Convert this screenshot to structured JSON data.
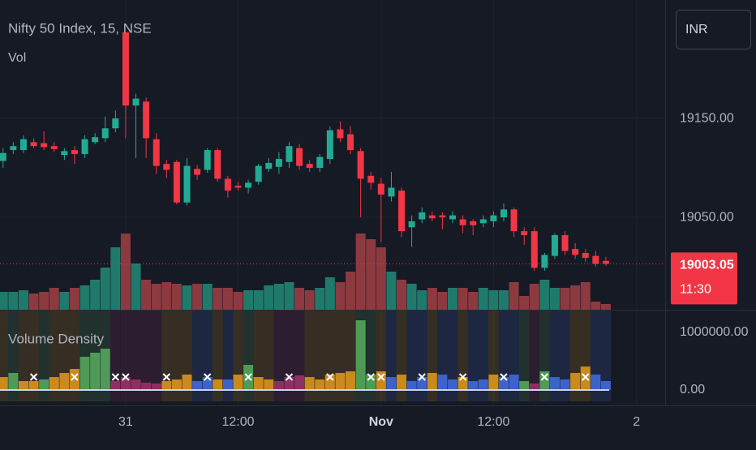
{
  "chart_data": [
    {
      "type": "candlestick",
      "title": "Nifty 50 Index, 15, NSE",
      "currency": "INR",
      "x": [
        -12,
        -11,
        -10,
        -9,
        -8,
        -7,
        -6,
        -5,
        -4,
        -3,
        -2,
        -1,
        0,
        1,
        2,
        3,
        4,
        5,
        6,
        7,
        8,
        9,
        10,
        11,
        12,
        13,
        14,
        15,
        16,
        17,
        18,
        19,
        20,
        21,
        22,
        23,
        24,
        25,
        26,
        27,
        28,
        29,
        30,
        31,
        32,
        33,
        34,
        35,
        36,
        37,
        38,
        39,
        40,
        41,
        42,
        43,
        44,
        45,
        46,
        47
      ],
      "open": [
        19107,
        19118,
        19118,
        19126,
        19125,
        19122,
        19113,
        19118,
        19114,
        19126,
        19130,
        19140,
        19237,
        19163,
        19167,
        19129,
        19104,
        19106,
        19065,
        19099,
        19098,
        19118,
        19089,
        19082,
        19080,
        19086,
        19099,
        19101,
        19106,
        19120,
        19104,
        19100,
        19109,
        19139,
        19134,
        19117,
        19092,
        19084,
        19071,
        19077,
        19040,
        19048,
        19052,
        19052,
        19048,
        19048,
        19046,
        19044,
        19046,
        19050,
        19058,
        19036,
        19036,
        18999,
        19011,
        19032,
        19018,
        19014,
        19011,
        19006
      ],
      "high": [
        19120,
        19126,
        19133,
        19130,
        19137,
        19126,
        19120,
        19122,
        19133,
        19135,
        19152,
        19158,
        19237,
        19175,
        19171,
        19135,
        19108,
        19108,
        19110,
        19103,
        19120,
        19120,
        19092,
        19086,
        19088,
        19104,
        19110,
        19116,
        19126,
        19124,
        19108,
        19114,
        19142,
        19147,
        19142,
        19120,
        19096,
        19090,
        19096,
        19080,
        19052,
        19060,
        19056,
        19055,
        19056,
        19052,
        19048,
        19052,
        19056,
        19064,
        19060,
        19040,
        19040,
        19014,
        19034,
        19036,
        19024,
        19018,
        19016,
        19010
      ],
      "low": [
        19100,
        19114,
        19115,
        19120,
        19118,
        19116,
        19108,
        19104,
        19110,
        19124,
        19126,
        19136,
        19130,
        19110,
        19110,
        19094,
        19090,
        19063,
        19062,
        19088,
        19095,
        19086,
        19070,
        19077,
        19074,
        19083,
        19096,
        19094,
        19100,
        19098,
        19096,
        19096,
        19104,
        19126,
        19114,
        19050,
        19078,
        19025,
        19066,
        19030,
        19020,
        19044,
        19046,
        19038,
        19044,
        19034,
        19032,
        19040,
        19040,
        19046,
        19030,
        19022,
        18996,
        18996,
        19008,
        19012,
        19008,
        19005,
        19000,
        19001
      ],
      "close": [
        19115,
        19122,
        19129,
        19122,
        19121,
        19119,
        19117,
        19114,
        19129,
        19131,
        19140,
        19150,
        19163,
        19170,
        19130,
        19102,
        19098,
        19065,
        19102,
        19093,
        19118,
        19089,
        19077,
        19080,
        19085,
        19102,
        19105,
        19109,
        19122,
        19102,
        19100,
        19111,
        19138,
        19130,
        19118,
        19089,
        19085,
        19073,
        19080,
        19036,
        19046,
        19055,
        19049,
        19050,
        19052,
        19042,
        19042,
        19048,
        19052,
        19058,
        19036,
        19032,
        18999,
        19012,
        19032,
        19016,
        19012,
        19009,
        19003,
        19003.05
      ],
      "up_color": "#22ab94",
      "down_color": "#f23645",
      "xlim": [
        -12.3,
        52.8
      ],
      "xticks": [
        {
          "value": 0,
          "label": "31"
        },
        {
          "value": 11,
          "label": "12:00"
        },
        {
          "value": 25,
          "label": "Nov"
        },
        {
          "value": 36,
          "label": "12:00"
        },
        {
          "value": 50,
          "label": "2"
        }
      ],
      "ylim": [
        18956.6,
        19269.7
      ],
      "yticks": [
        {
          "value": 19050,
          "label": "19050.00"
        },
        {
          "value": 19150,
          "label": "19150.00"
        }
      ],
      "grid": true,
      "last_price": 19003.05,
      "countdown": "11:30",
      "volume": {
        "name": "Vol",
        "ylim": [
          0,
          408000
        ],
        "up_color": "#1f7a6c",
        "down_color": "#8c3a40",
        "values": [
          88000,
          88000,
          96000,
          80000,
          88000,
          108000,
          88000,
          108000,
          120000,
          148000,
          208000,
          308000,
          376000,
          228000,
          148000,
          128000,
          136000,
          128000,
          120000,
          128000,
          128000,
          108000,
          108000,
          88000,
          96000,
          96000,
          120000,
          128000,
          136000,
          108000,
          96000,
          108000,
          160000,
          136000,
          188000,
          376000,
          348000,
          308000,
          188000,
          148000,
          128000,
          96000,
          108000,
          88000,
          108000,
          108000,
          88000,
          108000,
          96000,
          96000,
          136000,
          68000,
          128000,
          148000,
          108000,
          108000,
          120000,
          136000,
          40000,
          28000
        ]
      }
    },
    {
      "type": "bar",
      "title": "Volume Density",
      "x": [
        -12,
        -11,
        -10,
        -9,
        -8,
        -7,
        -6,
        -5,
        -4,
        -3,
        -2,
        -1,
        0,
        1,
        2,
        3,
        4,
        5,
        6,
        7,
        8,
        9,
        10,
        11,
        12,
        13,
        14,
        15,
        16,
        17,
        18,
        19,
        20,
        21,
        22,
        23,
        24,
        25,
        26,
        27,
        28,
        29,
        30,
        31,
        32,
        33,
        34,
        35,
        36,
        37,
        38,
        39,
        40,
        41,
        42,
        43,
        44,
        45,
        46,
        47
      ],
      "values": [
        225000,
        296000,
        155000,
        155000,
        183000,
        225000,
        296000,
        366000,
        577000,
        648000,
        718000,
        155000,
        225000,
        183000,
        127000,
        113000,
        155000,
        183000,
        268000,
        155000,
        225000,
        183000,
        183000,
        268000,
        437000,
        225000,
        183000,
        155000,
        225000,
        254000,
        225000,
        183000,
        268000,
        296000,
        324000,
        1211000,
        268000,
        324000,
        225000,
        268000,
        155000,
        225000,
        296000,
        268000,
        183000,
        225000,
        155000,
        183000,
        268000,
        225000,
        268000,
        155000,
        113000,
        324000,
        225000,
        183000,
        296000,
        408000,
        268000,
        155000
      ],
      "colors": [
        "#c98a1e",
        "#4f9a57",
        "#c98a1e",
        "#c98a1e",
        "#4f9a57",
        "#c98a1e",
        "#c98a1e",
        "#c98a1e",
        "#4f9a57",
        "#4f9a57",
        "#4f9a57",
        "#8e2f63",
        "#8e2f63",
        "#8e2f63",
        "#8e2f63",
        "#8e2f63",
        "#c98a1e",
        "#c98a1e",
        "#c98a1e",
        "#3d63c9",
        "#3d63c9",
        "#c98a1e",
        "#3d63c9",
        "#c98a1e",
        "#4f9a57",
        "#c98a1e",
        "#c98a1e",
        "#8e2f63",
        "#8e2f63",
        "#8e2f63",
        "#c98a1e",
        "#c98a1e",
        "#c98a1e",
        "#c98a1e",
        "#c98a1e",
        "#4f9a57",
        "#4f9a57",
        "#c98a1e",
        "#3d63c9",
        "#c98a1e",
        "#3d63c9",
        "#3d63c9",
        "#c98a1e",
        "#3d63c9",
        "#3d63c9",
        "#c98a1e",
        "#3d63c9",
        "#3d63c9",
        "#c98a1e",
        "#3d63c9",
        "#3d63c9",
        "#4f9a57",
        "#8e2f63",
        "#4f9a57",
        "#3d63c9",
        "#3d63c9",
        "#c98a1e",
        "#c98a1e",
        "#3d63c9",
        "#3d63c9"
      ],
      "markers": [
        -9,
        -5,
        -1,
        0,
        4,
        8,
        12,
        16,
        20,
        24,
        25,
        29,
        33,
        37,
        41,
        45
      ],
      "ylim": [
        -197000,
        1380000
      ],
      "yticks": [
        {
          "value": 0,
          "label": "0.00"
        },
        {
          "value": 1000000,
          "label": "1000000.00"
        }
      ]
    }
  ]
}
